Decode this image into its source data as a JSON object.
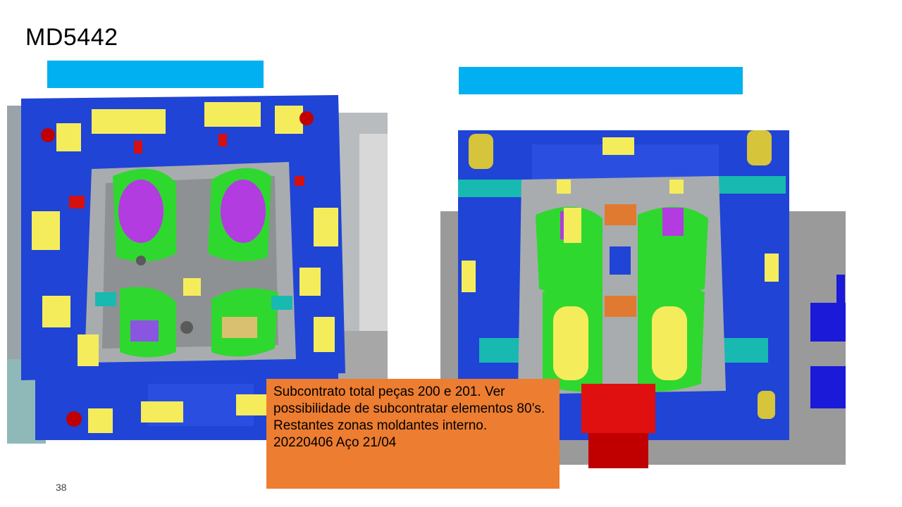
{
  "slide": {
    "title": "MD5442",
    "page_number": "38"
  },
  "caption_bars": {
    "left_color": "#00b0f0",
    "right_color": "#00b0f0"
  },
  "images": {
    "left": {
      "icon": "mold-cad-render-icon"
    },
    "right": {
      "icon": "mold-cad-render-icon"
    }
  },
  "note": {
    "background": "#ed7d31",
    "lines": [
      "Subcontrato total peças 200 e 201. Ver possibilidade de subcontratar elementos 80’s.",
      "Restantes zonas moldantes interno.",
      "20220406 Aço 21/04"
    ]
  }
}
